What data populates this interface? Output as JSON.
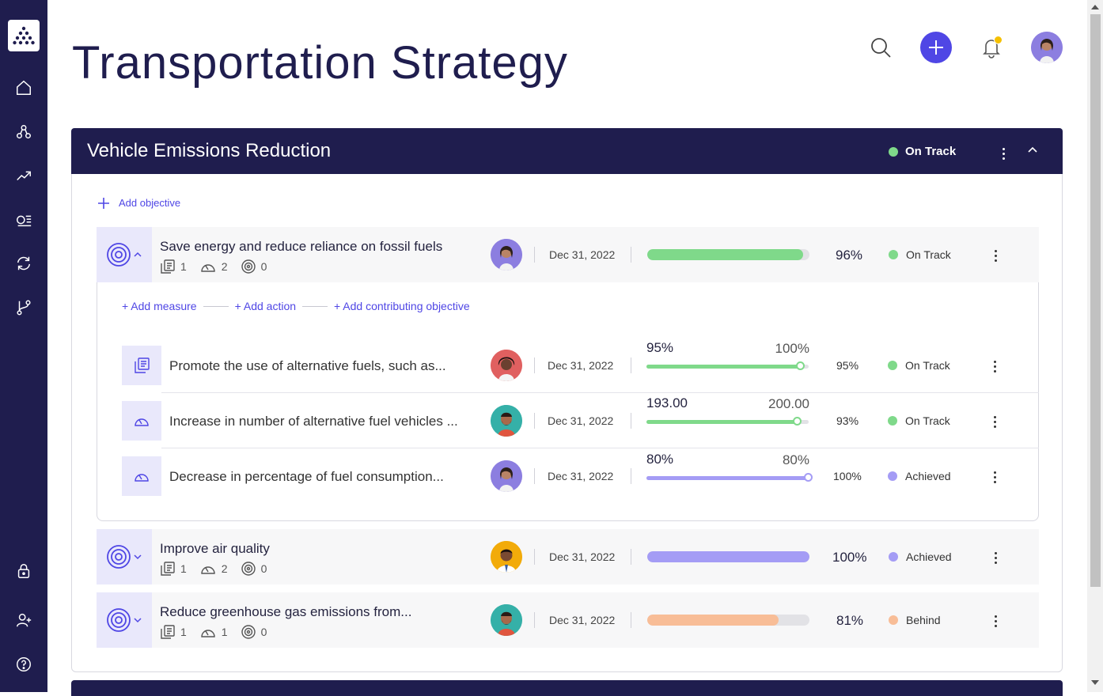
{
  "page": {
    "title": "Transportation Strategy"
  },
  "sidebar": {
    "items": [
      {
        "name": "home-icon"
      },
      {
        "name": "hierarchy-icon"
      },
      {
        "name": "trending-icon"
      },
      {
        "name": "list-icon"
      },
      {
        "name": "sync-icon"
      },
      {
        "name": "branch-icon"
      },
      {
        "name": "lock-icon"
      },
      {
        "name": "add-user-icon"
      },
      {
        "name": "help-icon"
      }
    ]
  },
  "colors": {
    "navy": "#1f1d4e",
    "accent": "#4f46e5",
    "on_track": "#7fd98a",
    "achieved": "#a49cf5",
    "behind": "#f8bd97"
  },
  "card": {
    "title": "Vehicle Emissions Reduction",
    "status": "On Track",
    "add_objective": "Add objective"
  },
  "objectives": [
    {
      "title": "Save energy and reduce reliance on fossil fuels",
      "counts": {
        "measures": "1",
        "actions": "2",
        "objectives": "0"
      },
      "date": "Dec 31, 2022",
      "progress": 0.96,
      "pct": "96%",
      "status": "On Track"
    },
    {
      "title": "Improve air quality",
      "counts": {
        "measures": "1",
        "actions": "2",
        "objectives": "0"
      },
      "date": "Dec 31, 2022",
      "progress": 1.0,
      "pct": "100%",
      "status": "Achieved"
    },
    {
      "title": "Reduce greenhouse gas emissions from...",
      "counts": {
        "measures": "1",
        "actions": "1",
        "objectives": "0"
      },
      "date": "Dec 31, 2022",
      "progress": 0.81,
      "pct": "81%",
      "status": "Behind"
    }
  ],
  "add_links": {
    "measure": "+ Add measure",
    "action": "+ Add action",
    "contributing": "+ Add contributing objective"
  },
  "children": [
    {
      "title": "Promote the use of alternative fuels, such as...",
      "date": "Dec 31, 2022",
      "current": "95%",
      "target": "100%",
      "progress": 0.95,
      "pct": "95%",
      "status": "On Track"
    },
    {
      "title": "Increase in number of alternative fuel vehicles ...",
      "date": "Dec 31, 2022",
      "current": "193.00",
      "target": "200.00",
      "progress": 0.93,
      "pct": "93%",
      "status": "On Track"
    },
    {
      "title": "Decrease in percentage of fuel consumption...",
      "date": "Dec 31, 2022",
      "current": "80%",
      "target": "80%",
      "progress": 1.0,
      "pct": "100%",
      "status": "Achieved"
    }
  ]
}
